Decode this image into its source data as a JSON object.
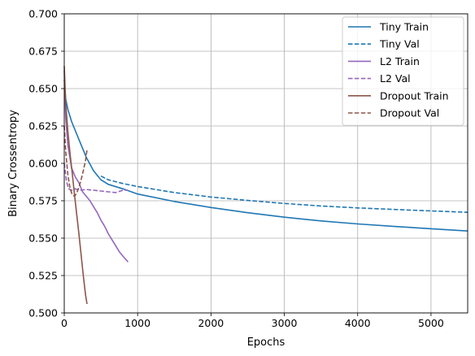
{
  "chart_data": {
    "type": "line",
    "xlabel": "Epochs",
    "ylabel": "Binary Crossentropy",
    "xlim": [
      0,
      5500
    ],
    "ylim": [
      0.5,
      0.7
    ],
    "xticks": [
      0,
      1000,
      2000,
      3000,
      4000,
      5000
    ],
    "xtick_labels": [
      "0",
      "1000",
      "2000",
      "3000",
      "4000",
      "5000"
    ],
    "yticks": [
      0.5,
      0.525,
      0.55,
      0.575,
      0.6,
      0.625,
      0.65,
      0.675,
      0.7
    ],
    "ytick_labels": [
      "0.500",
      "0.525",
      "0.550",
      "0.575",
      "0.600",
      "0.625",
      "0.650",
      "0.675",
      "0.700"
    ],
    "grid": true,
    "legend_position": "top-right",
    "series": [
      {
        "name": "Tiny Train",
        "color": "#1f77b4",
        "style": "solid",
        "x": [
          0,
          20,
          50,
          100,
          200,
          300,
          400,
          500,
          600,
          800,
          1000,
          1500,
          2000,
          2500,
          3000,
          3500,
          4000,
          4500,
          5000,
          5500
        ],
        "y": [
          0.656,
          0.643,
          0.636,
          0.628,
          0.616,
          0.604,
          0.595,
          0.589,
          0.586,
          0.583,
          0.5795,
          0.5745,
          0.5705,
          0.567,
          0.564,
          0.5615,
          0.5595,
          0.5578,
          0.5563,
          0.5548
        ]
      },
      {
        "name": "Tiny Val",
        "color": "#1f77b4",
        "style": "dashed",
        "x": [
          500,
          600,
          800,
          1000,
          1500,
          2000,
          2500,
          3000,
          3500,
          4000,
          4500,
          5000,
          5500
        ],
        "y": [
          0.5915,
          0.589,
          0.5865,
          0.5845,
          0.5805,
          0.5775,
          0.5752,
          0.5732,
          0.5715,
          0.5702,
          0.5692,
          0.5682,
          0.5673
        ]
      },
      {
        "name": "L2 Train",
        "color": "#9467bd",
        "style": "solid",
        "x": [
          0,
          20,
          50,
          100,
          150,
          200,
          250,
          300,
          350,
          400,
          450,
          500,
          550,
          600,
          650,
          700,
          750,
          800,
          870
        ],
        "y": [
          0.662,
          0.63,
          0.612,
          0.597,
          0.591,
          0.587,
          0.581,
          0.578,
          0.575,
          0.571,
          0.567,
          0.562,
          0.558,
          0.553,
          0.549,
          0.545,
          0.541,
          0.538,
          0.534
        ]
      },
      {
        "name": "L2 Val",
        "color": "#9467bd",
        "style": "dashed",
        "x": [
          0,
          30,
          60,
          100,
          150,
          200,
          300,
          400,
          500,
          600,
          700,
          800,
          870
        ],
        "y": [
          0.6,
          0.588,
          0.583,
          0.582,
          0.583,
          0.582,
          0.5825,
          0.582,
          0.5815,
          0.581,
          0.5805,
          0.582,
          0.582
        ]
      },
      {
        "name": "Dropout Train",
        "color": "#8c564b",
        "style": "solid",
        "x": [
          0,
          20,
          50,
          80,
          110,
          140,
          170,
          200,
          230,
          260,
          290,
          310
        ],
        "y": [
          0.665,
          0.64,
          0.621,
          0.606,
          0.593,
          0.579,
          0.566,
          0.553,
          0.539,
          0.525,
          0.512,
          0.506
        ]
      },
      {
        "name": "Dropout Val",
        "color": "#8c564b",
        "style": "dashed",
        "x": [
          0,
          20,
          50,
          80,
          110,
          140,
          170,
          200,
          230,
          260,
          290,
          310
        ],
        "y": [
          0.625,
          0.608,
          0.592,
          0.583,
          0.579,
          0.578,
          0.58,
          0.584,
          0.589,
          0.595,
          0.602,
          0.609
        ]
      }
    ]
  }
}
